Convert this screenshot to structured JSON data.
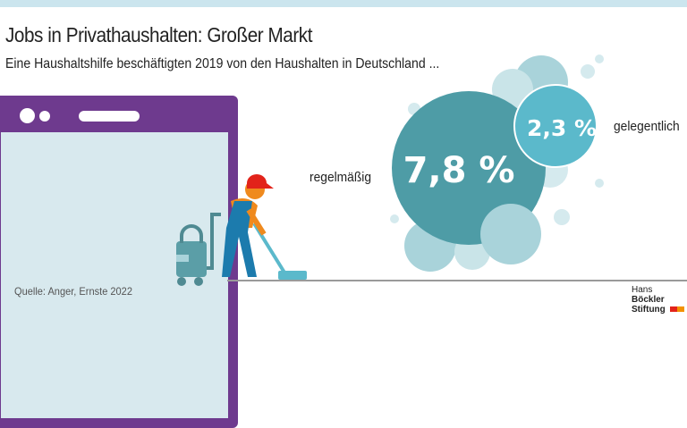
{
  "header": {
    "title": "Jobs in Privathaushalten: Großer Markt",
    "subtitle": "Eine Haushaltshilfe beschäftigten 2019 von den Haushalten in Deutschland ..."
  },
  "source": "Quelle: Anger, Ernste 2022",
  "logo": {
    "line1a": "Hans",
    "line1b": "Böckler",
    "line2": "Stiftung"
  },
  "colors": {
    "regular": "#4e9ca6",
    "occasional": "#5bb9cb",
    "frame": "#6e3a8e",
    "logo_red": "#e2231a",
    "logo_orange": "#f39200"
  },
  "chart_data": {
    "type": "bubble",
    "title": "Jobs in Privathaushalten: Großer Markt",
    "subtitle": "Eine Haushaltshilfe beschäftigten 2019 von den Haushalten in Deutschland ...",
    "unit": "%",
    "series": [
      {
        "name": "regelmäßig",
        "value": 7.8,
        "label": "7,8 %"
      },
      {
        "name": "gelegentlich",
        "value": 2.3,
        "label": "2,3 %"
      }
    ]
  }
}
